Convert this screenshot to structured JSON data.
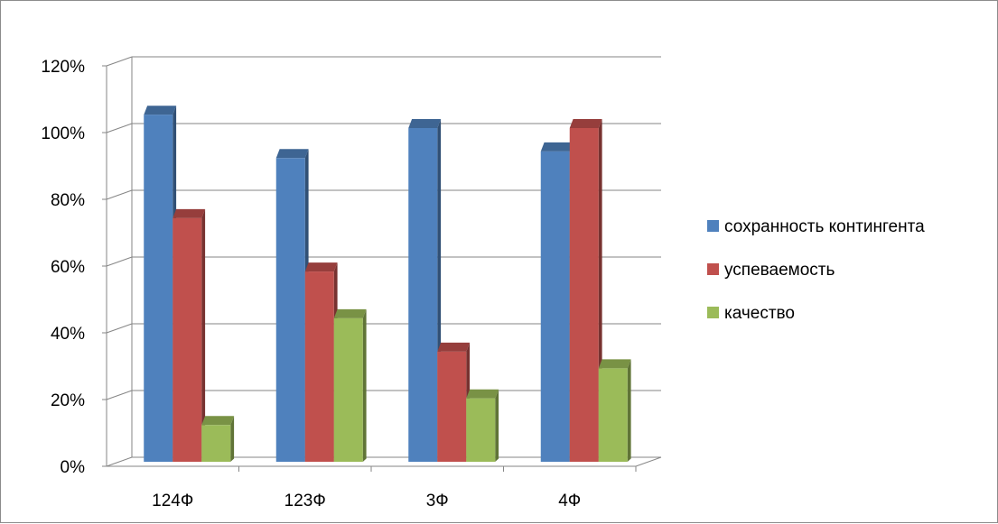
{
  "chart_data": {
    "type": "bar",
    "variant": "3d-clustered-column",
    "categories": [
      "124Ф",
      "123Ф",
      "3Ф",
      "4Ф"
    ],
    "series": [
      {
        "name": "сохранность контингента",
        "color": "#4f81bd",
        "values": [
          1.04,
          0.91,
          1.0,
          0.93
        ]
      },
      {
        "name": "успеваемость",
        "color": "#c0504d",
        "values": [
          0.73,
          0.57,
          0.33,
          1.0
        ]
      },
      {
        "name": "качество",
        "color": "#9bbb59",
        "values": [
          0.11,
          0.43,
          0.19,
          0.28
        ]
      }
    ],
    "y_ticks": [
      "0%",
      "20%",
      "40%",
      "60%",
      "80%",
      "100%",
      "120%"
    ],
    "ylim": [
      0,
      1.2
    ],
    "grid": true,
    "legend": "right",
    "title": "",
    "xlabel": "",
    "ylabel": ""
  }
}
